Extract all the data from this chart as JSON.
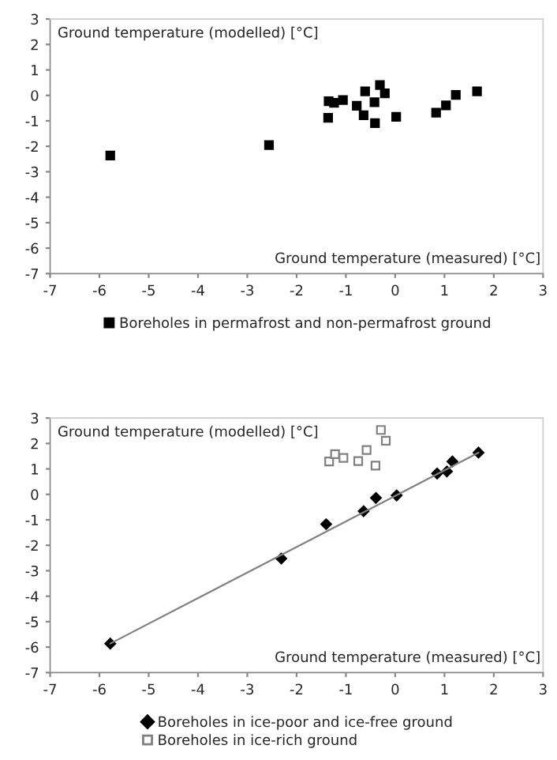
{
  "chart_data": [
    {
      "type": "scatter",
      "xlabel": "Ground temperature (measured) [°C]",
      "ylabel": "Ground temperature (modelled) [°C]",
      "xlim": [
        -7,
        3
      ],
      "ylim": [
        -7,
        3
      ],
      "xticks": [
        -7,
        -6,
        -5,
        -4,
        -3,
        -2,
        -1,
        0,
        1,
        2,
        3
      ],
      "yticks": [
        -7,
        -6,
        -5,
        -4,
        -3,
        -2,
        -1,
        0,
        1,
        2,
        3
      ],
      "grid": false,
      "legend": "bottom",
      "series": [
        {
          "name": "Boreholes in permafrost and non-permafrost ground",
          "color": "#000000",
          "marker": "square",
          "x": [
            -5.78,
            -2.56,
            -1.36,
            -1.35,
            -1.24,
            -1.06,
            -0.78,
            -0.64,
            -0.61,
            -0.42,
            -0.41,
            -0.31,
            -0.21,
            0.02,
            0.83,
            1.03,
            1.23,
            1.66
          ],
          "values": [
            -2.36,
            -1.95,
            -0.88,
            -0.23,
            -0.29,
            -0.18,
            -0.41,
            -0.78,
            0.16,
            -0.27,
            -1.09,
            0.41,
            0.08,
            -0.84,
            -0.68,
            -0.39,
            0.02,
            0.16
          ]
        }
      ]
    },
    {
      "type": "scatter",
      "xlabel": "Ground temperature (measured) [°C]",
      "ylabel": "Ground temperature (modelled) [°C]",
      "xlim": [
        -7,
        3
      ],
      "ylim": [
        -7,
        3
      ],
      "xticks": [
        -7,
        -6,
        -5,
        -4,
        -3,
        -2,
        -1,
        0,
        1,
        2,
        3
      ],
      "yticks": [
        -7,
        -6,
        -5,
        -4,
        -3,
        -2,
        -1,
        0,
        1,
        2,
        3
      ],
      "grid": false,
      "legend": "bottom",
      "series": [
        {
          "name": "Boreholes in ice-poor and ice-free ground",
          "color": "#000000",
          "marker": "diamond",
          "x": [
            -5.78,
            -2.31,
            -1.4,
            -0.64,
            -0.39,
            0.03,
            0.85,
            1.05,
            1.16,
            1.69
          ],
          "values": [
            -5.86,
            -2.52,
            -1.17,
            -0.66,
            -0.14,
            -0.04,
            0.82,
            0.9,
            1.29,
            1.64
          ]
        },
        {
          "name": "Boreholes in ice-rich ground",
          "color": "#808080",
          "marker": "square",
          "x": [
            -1.34,
            -1.22,
            -1.05,
            -0.75,
            -0.58,
            -0.4,
            -0.29,
            -0.19
          ],
          "values": [
            1.29,
            1.58,
            1.43,
            1.31,
            1.74,
            1.13,
            2.53,
            2.11
          ]
        },
        {
          "type": "line",
          "color": "#808080",
          "marker": "none",
          "line_style": "solid",
          "x": [
            -5.78,
            1.69
          ],
          "values": [
            -5.86,
            1.64
          ]
        }
      ]
    }
  ]
}
